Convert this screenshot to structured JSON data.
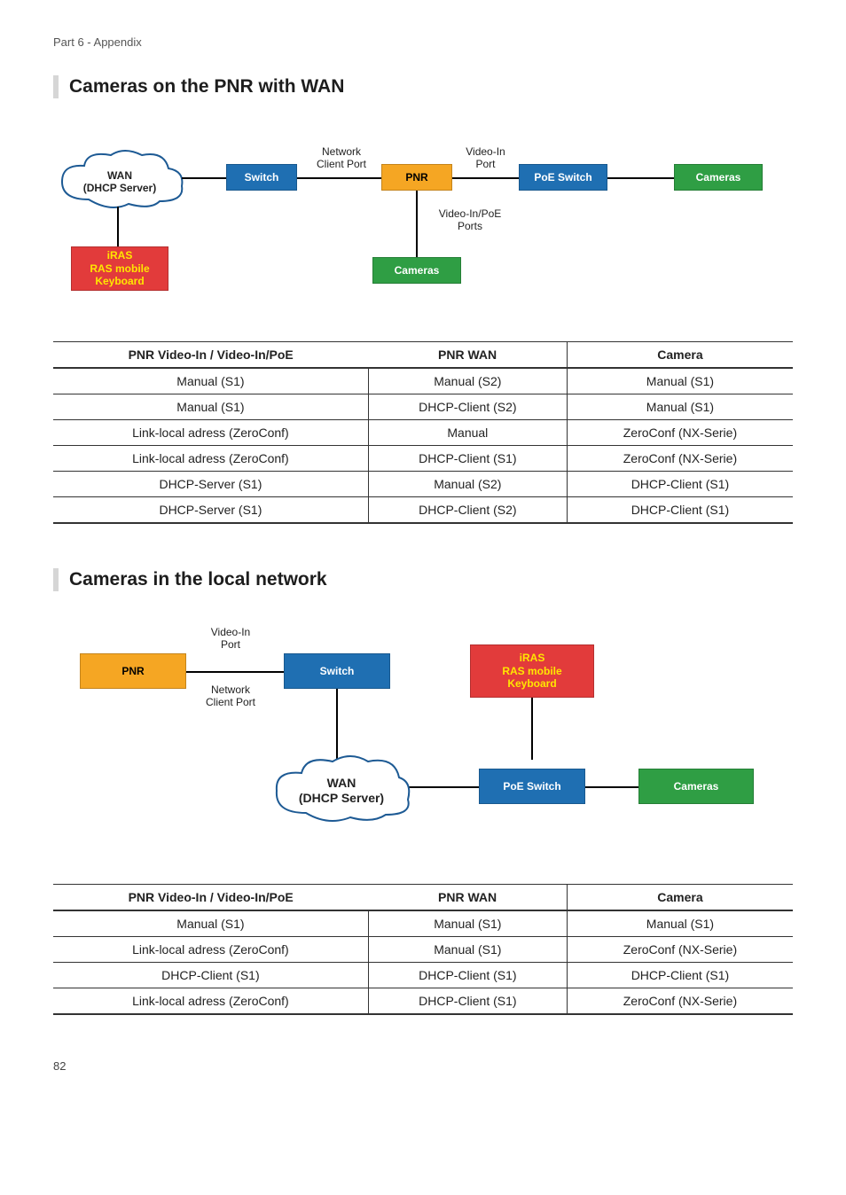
{
  "header": "Part 6 - Appendix",
  "page_number": "82",
  "colors": {
    "blue": "#1f6fb2",
    "orange": "#f5a623",
    "green": "#2f9e44",
    "red": "#e23b3b",
    "red_text": "#ffe600",
    "section_bar": "#d6d6d6"
  },
  "section1": {
    "title": "Cameras on the PNR with WAN",
    "diagram": {
      "wan_cloud": "WAN\n(DHCP Server)",
      "switch": "Switch",
      "pnr": "PNR",
      "poe_switch": "PoE Switch",
      "cameras_right": "Cameras",
      "cameras_bottom": "Cameras",
      "iras": "iRAS\nRAS mobile\nKeyboard",
      "lbl_network_client": "Network\nClient Port",
      "lbl_videoin_port": "Video-In\nPort",
      "lbl_videoin_poe": "Video-In/PoE\nPorts"
    },
    "table": {
      "headers": [
        "PNR  Video-In / Video-In/PoE",
        "PNR WAN",
        "Camera"
      ],
      "rows": [
        [
          "Manual (S1)",
          "Manual (S2)",
          "Manual (S1)"
        ],
        [
          "Manual (S1)",
          "DHCP-Client (S2)",
          "Manual (S1)"
        ],
        [
          "Link-local adress (ZeroConf)",
          "Manual",
          "ZeroConf (NX-Serie)"
        ],
        [
          "Link-local adress (ZeroConf)",
          "DHCP-Client (S1)",
          "ZeroConf (NX-Serie)"
        ],
        [
          "DHCP-Server (S1)",
          "Manual (S2)",
          "DHCP-Client (S1)"
        ],
        [
          "DHCP-Server (S1)",
          "DHCP-Client (S2)",
          "DHCP-Client (S1)"
        ]
      ]
    }
  },
  "section2": {
    "title": "Cameras in the local network",
    "diagram": {
      "pnr": "PNR",
      "switch": "Switch",
      "iras": "iRAS\nRAS mobile\nKeyboard",
      "wan_cloud": "WAN\n(DHCP Server)",
      "poe_switch": "PoE Switch",
      "cameras": "Cameras",
      "lbl_videoin_port": "Video-In\nPort",
      "lbl_network_client": "Network\nClient Port"
    },
    "table": {
      "headers": [
        "PNR  Video-In / Video-In/PoE",
        "PNR WAN",
        "Camera"
      ],
      "rows": [
        [
          "Manual (S1)",
          "Manual (S1)",
          "Manual (S1)"
        ],
        [
          "Link-local adress (ZeroConf)",
          "Manual (S1)",
          "ZeroConf (NX-Serie)"
        ],
        [
          "DHCP-Client (S1)",
          "DHCP-Client (S1)",
          "DHCP-Client (S1)"
        ],
        [
          "Link-local adress (ZeroConf)",
          "DHCP-Client (S1)",
          "ZeroConf (NX-Serie)"
        ]
      ]
    }
  }
}
